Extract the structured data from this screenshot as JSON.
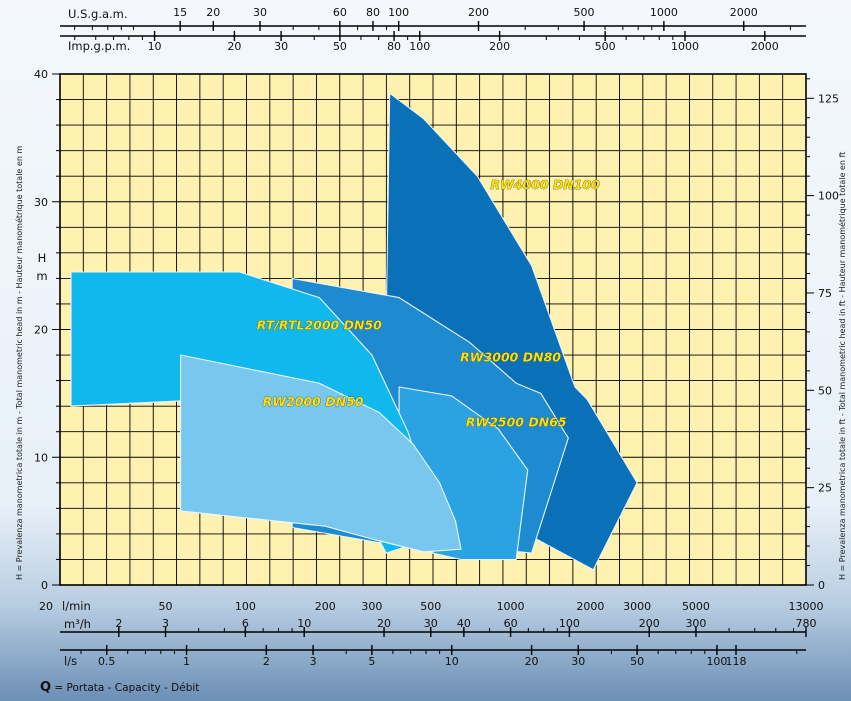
{
  "chart_data": {
    "type": "area",
    "x_scale": "log",
    "y_scale": "linear",
    "grid": true,
    "background": "#fff2b0",
    "gridColor": "#000000",
    "xlim_lmin": [
      20,
      13000
    ],
    "ylim_m": [
      0,
      40
    ],
    "axes": {
      "left": {
        "unit": "H",
        "unit2": "m",
        "ticks": [
          {
            "v": 0,
            "label": "0"
          },
          {
            "v": 10,
            "label": "10"
          },
          {
            "v": 20,
            "label": "20"
          },
          {
            "v": 30,
            "label": "30"
          },
          {
            "v": 40,
            "label": "40"
          }
        ]
      },
      "right": {
        "unit": "ft",
        "ticks": [
          {
            "v": 0,
            "label": "0"
          },
          {
            "v": 25,
            "label": "25"
          },
          {
            "v": 50,
            "label": "50"
          },
          {
            "v": 75,
            "label": "75"
          },
          {
            "v": 100,
            "label": "100"
          },
          {
            "v": 125,
            "label": "125"
          }
        ]
      },
      "top": [
        {
          "name": "U.S.g.a.m.",
          "ticks": [
            {
              "v": 15,
              "label": "15"
            },
            {
              "v": 20,
              "label": "20"
            },
            {
              "v": 30,
              "label": "30"
            },
            {
              "v": 60,
              "label": "60"
            },
            {
              "v": 80,
              "label": "80"
            },
            {
              "v": 100,
              "label": "100"
            },
            {
              "v": 200,
              "label": "200"
            },
            {
              "v": 500,
              "label": "500"
            },
            {
              "v": 1000,
              "label": "1000"
            },
            {
              "v": 2000,
              "label": "2000"
            }
          ]
        },
        {
          "name": "Imp.g.p.m.",
          "ticks": [
            {
              "v": 10,
              "label": "10"
            },
            {
              "v": 20,
              "label": "20"
            },
            {
              "v": 30,
              "label": "30"
            },
            {
              "v": 50,
              "label": "50"
            },
            {
              "v": 80,
              "label": "80"
            },
            {
              "v": 100,
              "label": "100"
            },
            {
              "v": 200,
              "label": "200"
            },
            {
              "v": 500,
              "label": "500"
            },
            {
              "v": 1000,
              "label": "1000"
            },
            {
              "v": 2000,
              "label": "2000"
            }
          ]
        }
      ],
      "bottom": [
        {
          "name": "l/min",
          "ticks": [
            {
              "v": 20,
              "label": "20"
            },
            {
              "v": 50,
              "label": "50"
            },
            {
              "v": 100,
              "label": "100"
            },
            {
              "v": 200,
              "label": "200"
            },
            {
              "v": 300,
              "label": "300"
            },
            {
              "v": 500,
              "label": "500"
            },
            {
              "v": 1000,
              "label": "1000"
            },
            {
              "v": 2000,
              "label": "2000"
            },
            {
              "v": 3000,
              "label": "3000"
            },
            {
              "v": 5000,
              "label": "5000"
            },
            {
              "v": 13000,
              "label": "13000"
            }
          ]
        },
        {
          "name": "m³/h",
          "ticks": [
            {
              "v": 2,
              "label": "2"
            },
            {
              "v": 3,
              "label": "3"
            },
            {
              "v": 6,
              "label": "6"
            },
            {
              "v": 10,
              "label": "10"
            },
            {
              "v": 20,
              "label": "20"
            },
            {
              "v": 30,
              "label": "30"
            },
            {
              "v": 40,
              "label": "40"
            },
            {
              "v": 60,
              "label": "60"
            },
            {
              "v": 100,
              "label": "100"
            },
            {
              "v": 200,
              "label": "200"
            },
            {
              "v": 300,
              "label": "300"
            },
            {
              "v": 780,
              "label": "780"
            }
          ]
        },
        {
          "name": "l/s",
          "ticks": [
            {
              "v": 0.5,
              "label": "0.5"
            },
            {
              "v": 1,
              "label": "1"
            },
            {
              "v": 2,
              "label": "2"
            },
            {
              "v": 3,
              "label": "3"
            },
            {
              "v": 5,
              "label": "5"
            },
            {
              "v": 10,
              "label": "10"
            },
            {
              "v": 20,
              "label": "20"
            },
            {
              "v": 30,
              "label": "30"
            },
            {
              "v": 50,
              "label": "50"
            },
            {
              "v": 100,
              "label": "100"
            },
            {
              "v": 118,
              "label": "118"
            }
          ]
        }
      ]
    },
    "series": [
      {
        "name": "RW4000 DN100",
        "color": "#0a70b8",
        "label_at": [
          1350,
          31
        ],
        "points": [
          [
            350,
            38.5
          ],
          [
            470,
            36.5
          ],
          [
            750,
            32
          ],
          [
            1200,
            25
          ],
          [
            1750,
            15.5
          ],
          [
            1950,
            14.5
          ],
          [
            3000,
            8
          ],
          [
            2050,
            1.2
          ],
          [
            1150,
            4
          ],
          [
            330,
            4
          ]
        ]
      },
      {
        "name": "RW3000 DN80",
        "color": "#1e8ad0",
        "label_at": [
          1000,
          17.5
        ],
        "points": [
          [
            150,
            24
          ],
          [
            380,
            22.5
          ],
          [
            700,
            19
          ],
          [
            1050,
            15.8
          ],
          [
            1300,
            15
          ],
          [
            1650,
            11.5
          ],
          [
            1200,
            2.5
          ],
          [
            700,
            3
          ],
          [
            390,
            3
          ],
          [
            150,
            4.5
          ]
        ]
      },
      {
        "name": "RW2500 DN65",
        "color": "#2ba3e2",
        "label_at": [
          1050,
          12.4
        ],
        "points": [
          [
            380,
            15.5
          ],
          [
            600,
            14.8
          ],
          [
            900,
            12.2
          ],
          [
            1160,
            9
          ],
          [
            1050,
            2
          ],
          [
            650,
            2
          ],
          [
            510,
            2.5
          ],
          [
            450,
            6.5
          ],
          [
            380,
            9.5
          ]
        ]
      },
      {
        "name": "RT/RTL2000 DN50",
        "color": "#10b8ee",
        "label_at": [
          190,
          20
        ],
        "points": [
          [
            22,
            24.5
          ],
          [
            95,
            24.5
          ],
          [
            190,
            22.5
          ],
          [
            300,
            18
          ],
          [
            410,
            12
          ],
          [
            510,
            6
          ],
          [
            560,
            4
          ],
          [
            340,
            2.5
          ],
          [
            320,
            3.5
          ],
          [
            200,
            4.8
          ],
          [
            150,
            5
          ],
          [
            95,
            7
          ],
          [
            70,
            14.5
          ],
          [
            22,
            14
          ]
        ]
      },
      {
        "name": "RW2000 DN50",
        "color": "#78c7ef",
        "label_at": [
          180,
          14
        ],
        "points": [
          [
            57,
            18
          ],
          [
            190,
            15.8
          ],
          [
            320,
            13.5
          ],
          [
            430,
            11
          ],
          [
            540,
            8
          ],
          [
            620,
            5
          ],
          [
            650,
            2.8
          ],
          [
            470,
            2.6
          ],
          [
            300,
            3.6
          ],
          [
            200,
            4.6
          ],
          [
            57,
            5.8
          ]
        ]
      }
    ]
  },
  "side_left_text": "H = Prevalenza manometrica totale in m - Total manometric head in m - Hauteur manométrique totale en m",
  "side_right_text": "H = Prevalenza manometrica totale in ft - Total manometric head in ft - Hauteur manométrique totale en ft",
  "caption": {
    "symbol": "Q",
    "text": "= Portata - Capacity - Débit"
  }
}
